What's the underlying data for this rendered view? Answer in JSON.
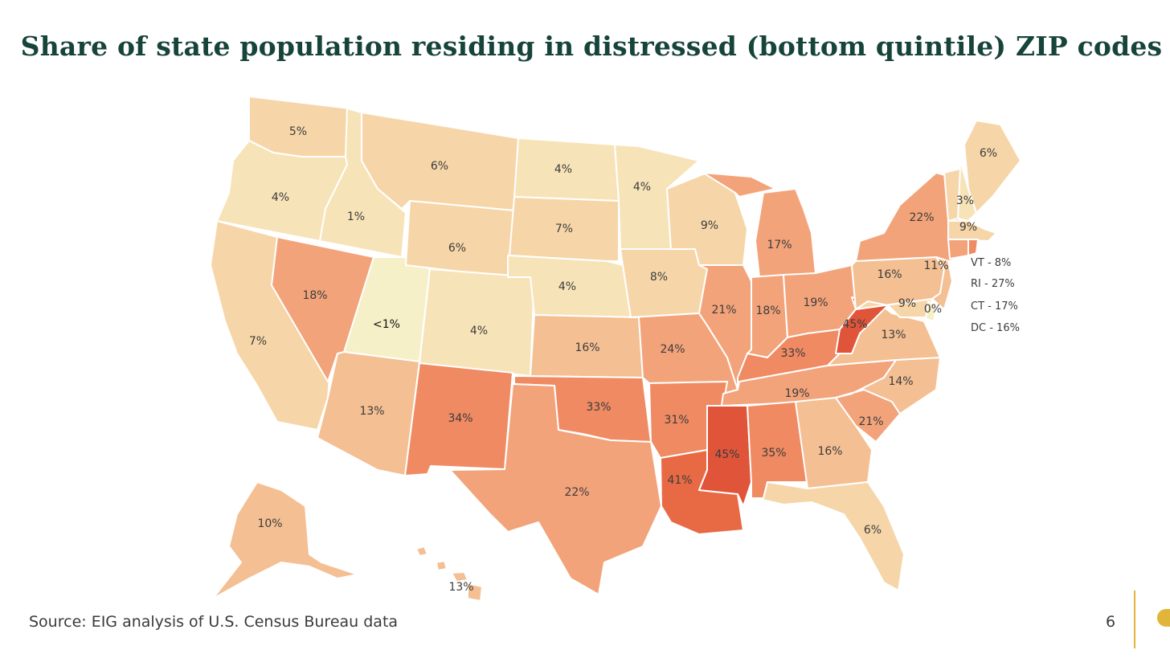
{
  "title": "Share of state population residing in distressed (bottom quintile) ZIP codes",
  "source": "Source: EIG analysis of U.S. Census Bureau data",
  "page_number": "6",
  "colors": {
    "title": "#17443a",
    "scale": [
      "#f5f0c8",
      "#f7e3b8",
      "#f6d6a8",
      "#f4bf92",
      "#f3a37a",
      "#ef8a62",
      "#e86a45",
      "#e0553a"
    ],
    "accent": "#e0b53a"
  },
  "side_notes": [
    "VT - 8%",
    "RI - 27%",
    "CT - 17%",
    "DC - 16%"
  ],
  "states": [
    {
      "id": "WA",
      "label": "5%",
      "value": 5
    },
    {
      "id": "OR",
      "label": "4%",
      "value": 4
    },
    {
      "id": "CA",
      "label": "7%",
      "value": 7
    },
    {
      "id": "ID",
      "label": "1%",
      "value": 1
    },
    {
      "id": "NV",
      "label": "18%",
      "value": 18
    },
    {
      "id": "UT",
      "label": "<1%",
      "value": 0.5
    },
    {
      "id": "AZ",
      "label": "13%",
      "value": 13
    },
    {
      "id": "MT",
      "label": "6%",
      "value": 6
    },
    {
      "id": "WY",
      "label": "6%",
      "value": 6
    },
    {
      "id": "CO",
      "label": "4%",
      "value": 4
    },
    {
      "id": "NM",
      "label": "34%",
      "value": 34
    },
    {
      "id": "ND",
      "label": "4%",
      "value": 4
    },
    {
      "id": "SD",
      "label": "7%",
      "value": 7
    },
    {
      "id": "NE",
      "label": "4%",
      "value": 4
    },
    {
      "id": "KS",
      "label": "16%",
      "value": 16
    },
    {
      "id": "OK",
      "label": "33%",
      "value": 33
    },
    {
      "id": "TX",
      "label": "22%",
      "value": 22
    },
    {
      "id": "MN",
      "label": "4%",
      "value": 4
    },
    {
      "id": "IA",
      "label": "8%",
      "value": 8
    },
    {
      "id": "MO",
      "label": "24%",
      "value": 24
    },
    {
      "id": "AR",
      "label": "31%",
      "value": 31
    },
    {
      "id": "LA",
      "label": "41%",
      "value": 41
    },
    {
      "id": "WI",
      "label": "9%",
      "value": 9
    },
    {
      "id": "IL",
      "label": "21%",
      "value": 21
    },
    {
      "id": "MI",
      "label": "17%",
      "value": 17
    },
    {
      "id": "IN",
      "label": "18%",
      "value": 18
    },
    {
      "id": "OH",
      "label": "19%",
      "value": 19
    },
    {
      "id": "KY",
      "label": "33%",
      "value": 33
    },
    {
      "id": "TN",
      "label": "19%",
      "value": 19
    },
    {
      "id": "MS",
      "label": "45%",
      "value": 45
    },
    {
      "id": "AL",
      "label": "35%",
      "value": 35
    },
    {
      "id": "GA",
      "label": "16%",
      "value": 16
    },
    {
      "id": "FL",
      "label": "6%",
      "value": 6
    },
    {
      "id": "SC",
      "label": "21%",
      "value": 21
    },
    {
      "id": "NC",
      "label": "14%",
      "value": 14
    },
    {
      "id": "VA",
      "label": "13%",
      "value": 13
    },
    {
      "id": "WV",
      "label": "45%",
      "value": 45
    },
    {
      "id": "PA",
      "label": "16%",
      "value": 16
    },
    {
      "id": "NY",
      "label": "22%",
      "value": 22
    },
    {
      "id": "NJ",
      "label": "11%",
      "value": 11
    },
    {
      "id": "MD",
      "label": "9%",
      "value": 9
    },
    {
      "id": "DE",
      "label": "0%",
      "value": 0
    },
    {
      "id": "ME",
      "label": "6%",
      "value": 6
    },
    {
      "id": "NH",
      "label": "3%",
      "value": 3
    },
    {
      "id": "MA",
      "label": "9%",
      "value": 9
    },
    {
      "id": "VT",
      "label": "",
      "value": 8
    },
    {
      "id": "RI",
      "label": "",
      "value": 27
    },
    {
      "id": "CT",
      "label": "",
      "value": 17
    },
    {
      "id": "AK",
      "label": "10%",
      "value": 10
    },
    {
      "id": "HI",
      "label": "13%",
      "value": 13
    }
  ]
}
